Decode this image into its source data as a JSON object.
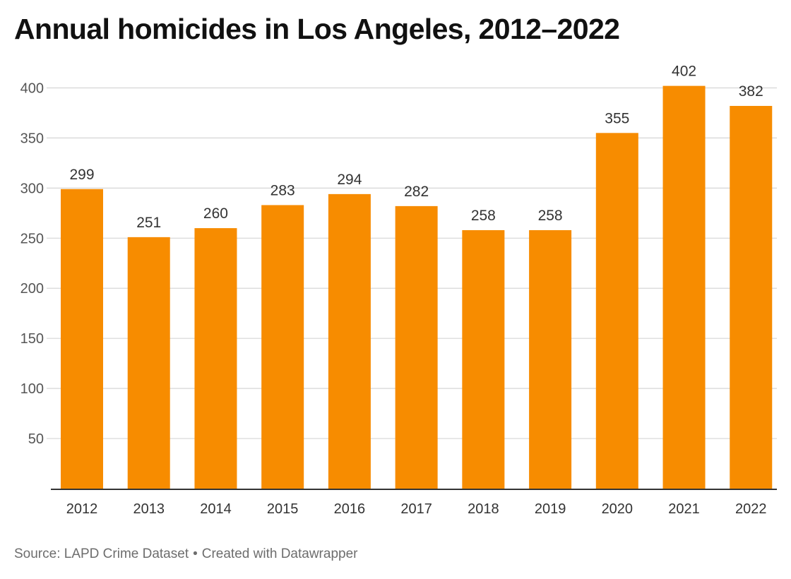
{
  "chart_data": {
    "type": "bar",
    "title": "Annual homicides in Los Angeles, 2012–2022",
    "categories": [
      "2012",
      "2013",
      "2014",
      "2015",
      "2016",
      "2017",
      "2018",
      "2019",
      "2020",
      "2021",
      "2022"
    ],
    "values": [
      299,
      251,
      260,
      283,
      294,
      282,
      258,
      258,
      355,
      402,
      382
    ],
    "y_ticks": [
      50,
      100,
      150,
      200,
      250,
      300,
      350,
      400
    ],
    "ylim": [
      0,
      425
    ],
    "xlabel": "",
    "ylabel": "",
    "grid": true,
    "bar_color": "#f78c00",
    "data_labels": true
  },
  "footer": {
    "source": "Source: LAPD Crime Dataset",
    "separator": "•",
    "credit": "Created with Datawrapper"
  }
}
